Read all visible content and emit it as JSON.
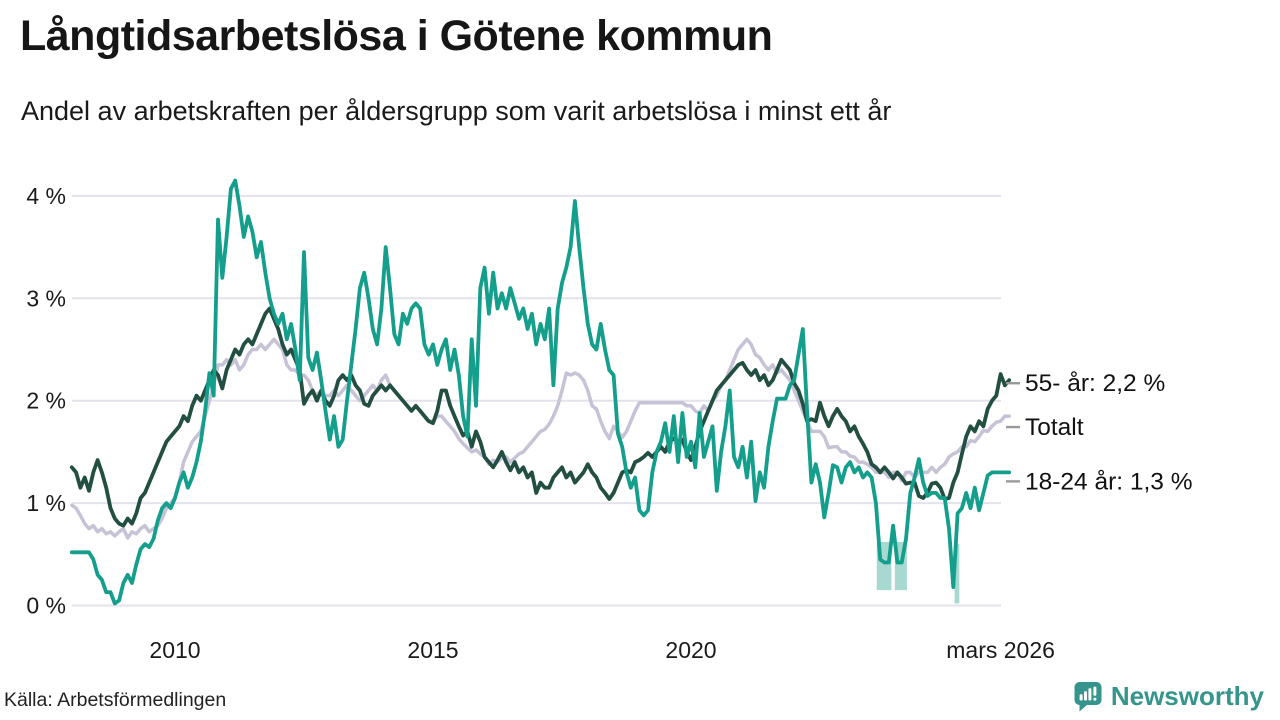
{
  "header": {
    "title": "Långtidsarbetslösa i Götene kommun",
    "subtitle": "Andel av arbetskraften per åldersgrupp som varit arbetslösa i minst ett år"
  },
  "footer": {
    "source": "Källa: Arbetsförmedlingen",
    "brand": "Newsworthy",
    "brand_color": "#35948b"
  },
  "chart_data": {
    "type": "line",
    "title": "Långtidsarbetslösa i Götene kommun",
    "x_start": "2008-01",
    "x_end": "2026-03",
    "x_unit": "month",
    "ylim": [
      0,
      4.3
    ],
    "grid": true,
    "grid_color": "#e4e2ec",
    "text_color": "#1a1a1a",
    "tick_dash_color": "#999999",
    "y_ticks": [
      {
        "label": "0 %",
        "value": 0
      },
      {
        "label": "1 %",
        "value": 1
      },
      {
        "label": "2 %",
        "value": 2
      },
      {
        "label": "3 %",
        "value": 3
      },
      {
        "label": "4 %",
        "value": 4
      }
    ],
    "x_ticks": [
      {
        "label": "2010",
        "month_index": 24
      },
      {
        "label": "2015",
        "month_index": 84
      },
      {
        "label": "2020",
        "month_index": 144
      },
      {
        "label": "mars 2026",
        "month_index": 216
      }
    ],
    "series": [
      {
        "name": "Totalt",
        "label": "Totalt",
        "color": "#c6c3d6",
        "width": 3.5,
        "label_dy": 19,
        "values": [
          0.98,
          0.95,
          0.88,
          0.8,
          0.75,
          0.78,
          0.72,
          0.75,
          0.7,
          0.72,
          0.68,
          0.72,
          0.75,
          0.66,
          0.72,
          0.7,
          0.75,
          0.78,
          0.72,
          0.75,
          0.78,
          0.85,
          0.95,
          1.0,
          1.05,
          1.2,
          1.4,
          1.5,
          1.6,
          1.65,
          1.7,
          1.85,
          2.0,
          2.15,
          2.35,
          2.35,
          2.4,
          2.35,
          2.4,
          2.3,
          2.35,
          2.45,
          2.5,
          2.5,
          2.55,
          2.5,
          2.55,
          2.6,
          2.55,
          2.5,
          2.35,
          2.3,
          2.3,
          2.25,
          2.25,
          2.2,
          2.1,
          2.05,
          2.1,
          2.05,
          2.05,
          2.1,
          2.05,
          2.1,
          2.15,
          2.1,
          2.05,
          2.0,
          2.05,
          2.1,
          2.15,
          2.1,
          2.2,
          2.25,
          2.15,
          2.1,
          2.05,
          2.0,
          1.95,
          1.9,
          1.95,
          1.9,
          1.85,
          1.8,
          1.8,
          1.85,
          1.85,
          1.8,
          1.75,
          1.7,
          1.63,
          1.58,
          1.54,
          1.5,
          1.52,
          1.48,
          1.45,
          1.38,
          1.42,
          1.4,
          1.44,
          1.45,
          1.4,
          1.44,
          1.48,
          1.5,
          1.55,
          1.6,
          1.65,
          1.7,
          1.72,
          1.77,
          1.85,
          1.95,
          2.1,
          2.27,
          2.25,
          2.27,
          2.25,
          2.2,
          2.1,
          1.95,
          1.92,
          1.8,
          1.7,
          1.63,
          1.75,
          1.7,
          1.64,
          1.7,
          1.8,
          1.9,
          1.98,
          1.98,
          1.98,
          1.98,
          1.98,
          1.98,
          1.98,
          1.98,
          1.98,
          1.98,
          1.98,
          1.95,
          1.95,
          1.9,
          1.88,
          1.95,
          1.9,
          2.0,
          2.05,
          2.15,
          2.2,
          2.3,
          2.4,
          2.5,
          2.55,
          2.6,
          2.55,
          2.45,
          2.42,
          2.35,
          2.3,
          2.35,
          2.27,
          2.3,
          2.25,
          2.2,
          2.1,
          2.0,
          1.9,
          1.8,
          1.7,
          1.7,
          1.7,
          1.65,
          1.54,
          1.55,
          1.55,
          1.5,
          1.5,
          1.46,
          1.45,
          1.4,
          1.4,
          1.38,
          1.35,
          1.3,
          1.3,
          1.3,
          1.25,
          1.3,
          1.3,
          1.22,
          1.3,
          1.3,
          1.25,
          1.3,
          1.3,
          1.3,
          1.35,
          1.3,
          1.35,
          1.38,
          1.45,
          1.48,
          1.5,
          1.55,
          1.55,
          1.61,
          1.6,
          1.65,
          1.71,
          1.7,
          1.75,
          1.79,
          1.8,
          1.85,
          1.85
        ]
      },
      {
        "name": "55- år",
        "label": "55- år: 2,2 %",
        "color": "#234f43",
        "width": 3.8,
        "label_dy": 11,
        "values": [
          1.35,
          1.3,
          1.15,
          1.25,
          1.12,
          1.3,
          1.42,
          1.3,
          1.15,
          0.95,
          0.85,
          0.8,
          0.78,
          0.85,
          0.8,
          0.9,
          1.05,
          1.1,
          1.2,
          1.3,
          1.4,
          1.5,
          1.6,
          1.65,
          1.7,
          1.75,
          1.85,
          1.8,
          1.95,
          2.05,
          2.0,
          2.1,
          2.2,
          2.3,
          2.25,
          2.12,
          2.3,
          2.4,
          2.5,
          2.45,
          2.55,
          2.6,
          2.55,
          2.65,
          2.75,
          2.85,
          2.9,
          2.8,
          2.7,
          2.55,
          2.45,
          2.5,
          2.4,
          2.3,
          1.97,
          2.05,
          2.1,
          2.0,
          2.1,
          2.0,
          1.95,
          2.05,
          2.2,
          2.25,
          2.2,
          2.25,
          2.15,
          2.1,
          1.97,
          1.95,
          2.05,
          2.1,
          2.15,
          2.1,
          2.15,
          2.1,
          2.05,
          2.0,
          1.95,
          1.9,
          1.95,
          1.9,
          1.85,
          1.8,
          1.78,
          1.9,
          2.1,
          2.1,
          1.95,
          1.85,
          1.75,
          1.66,
          1.7,
          1.55,
          1.7,
          1.6,
          1.45,
          1.4,
          1.35,
          1.42,
          1.5,
          1.4,
          1.32,
          1.4,
          1.3,
          1.35,
          1.25,
          1.3,
          1.1,
          1.2,
          1.15,
          1.15,
          1.25,
          1.3,
          1.35,
          1.25,
          1.3,
          1.2,
          1.25,
          1.3,
          1.38,
          1.3,
          1.25,
          1.15,
          1.1,
          1.04,
          1.1,
          1.2,
          1.3,
          1.32,
          1.3,
          1.4,
          1.42,
          1.45,
          1.49,
          1.45,
          1.5,
          1.55,
          1.5,
          1.6,
          1.63,
          1.6,
          1.62,
          1.5,
          1.42,
          1.55,
          1.7,
          1.8,
          1.9,
          2.0,
          2.1,
          2.15,
          2.2,
          2.25,
          2.3,
          2.35,
          2.37,
          2.3,
          2.25,
          2.3,
          2.2,
          2.25,
          2.15,
          2.2,
          2.3,
          2.4,
          2.35,
          2.3,
          2.17,
          2.1,
          1.97,
          1.8,
          1.82,
          1.8,
          1.98,
          1.85,
          1.75,
          1.85,
          1.92,
          1.85,
          1.8,
          1.7,
          1.75,
          1.65,
          1.58,
          1.5,
          1.38,
          1.35,
          1.3,
          1.35,
          1.3,
          1.24,
          1.3,
          1.25,
          1.19,
          1.2,
          1.2,
          1.07,
          1.05,
          1.1,
          1.19,
          1.2,
          1.15,
          1.04,
          1.05,
          1.2,
          1.3,
          1.48,
          1.65,
          1.75,
          1.7,
          1.8,
          1.75,
          1.92,
          2.0,
          2.05,
          2.26,
          2.15,
          2.2
        ]
      },
      {
        "name": "18-24 år",
        "label": "18-24 år: 1,3 %",
        "color": "#149e8c",
        "width": 3.8,
        "label_dy": 17,
        "values": [
          0.52,
          0.52,
          0.52,
          0.52,
          0.52,
          0.45,
          0.3,
          0.25,
          0.13,
          0.13,
          0.02,
          0.05,
          0.22,
          0.3,
          0.22,
          0.4,
          0.55,
          0.6,
          0.57,
          0.65,
          0.83,
          0.95,
          1.0,
          0.95,
          1.05,
          1.2,
          1.3,
          1.15,
          1.25,
          1.4,
          1.6,
          1.9,
          2.27,
          2.05,
          3.77,
          3.2,
          3.6,
          4.07,
          4.15,
          3.9,
          3.6,
          3.8,
          3.65,
          3.4,
          3.55,
          3.25,
          3.0,
          2.85,
          2.75,
          2.85,
          2.6,
          2.75,
          2.5,
          2.2,
          3.45,
          2.42,
          2.3,
          2.47,
          2.2,
          1.9,
          1.62,
          1.85,
          1.55,
          1.62,
          2.0,
          2.35,
          2.7,
          3.1,
          3.25,
          3.0,
          2.7,
          2.55,
          2.9,
          3.5,
          3.1,
          2.65,
          2.55,
          2.85,
          2.75,
          2.9,
          2.95,
          2.9,
          2.55,
          2.45,
          2.55,
          2.35,
          2.5,
          2.6,
          2.3,
          2.5,
          2.25,
          1.85,
          1.65,
          2.6,
          1.95,
          3.1,
          3.3,
          2.85,
          3.25,
          2.9,
          3.05,
          2.9,
          3.1,
          2.95,
          2.8,
          2.9,
          2.7,
          2.85,
          2.55,
          2.75,
          2.6,
          2.9,
          2.15,
          2.9,
          3.15,
          3.3,
          3.5,
          3.95,
          3.5,
          3.1,
          2.75,
          2.55,
          2.5,
          2.75,
          2.5,
          2.3,
          2.25,
          1.68,
          1.55,
          1.3,
          1.15,
          1.25,
          0.93,
          0.88,
          0.93,
          1.3,
          1.5,
          1.6,
          1.78,
          1.5,
          1.85,
          1.4,
          1.88,
          1.45,
          1.6,
          1.35,
          1.88,
          1.45,
          1.6,
          1.75,
          1.12,
          1.5,
          1.75,
          2.1,
          1.45,
          1.35,
          1.55,
          1.25,
          1.6,
          1.02,
          1.3,
          1.15,
          1.55,
          1.8,
          2.02,
          2.02,
          2.02,
          2.15,
          2.2,
          2.45,
          2.7,
          1.9,
          1.2,
          1.38,
          1.2,
          0.86,
          1.1,
          1.37,
          1.35,
          1.2,
          1.35,
          1.4,
          1.3,
          1.35,
          1.25,
          1.3,
          1.25,
          1.0,
          0.45,
          0.42,
          0.42,
          0.78,
          0.42,
          0.42,
          0.65,
          1.1,
          1.25,
          1.43,
          1.2,
          1.07,
          1.1,
          1.1,
          1.05,
          1.05,
          0.75,
          0.18,
          0.9,
          0.95,
          1.1,
          0.95,
          1.15,
          0.93,
          1.1,
          1.27,
          1.3,
          1.3,
          1.3,
          1.3,
          1.3
        ]
      }
    ],
    "uncertainty_color": "#a7d9d0",
    "uncertainty_bands": [
      {
        "start_month": 187.2,
        "end_month": 190.6,
        "top": 0.62,
        "bottom": 0.15
      },
      {
        "start_month": 191.4,
        "end_month": 194.2,
        "top": 0.62,
        "bottom": 0.15
      },
      {
        "start_month": 205.3,
        "end_month": 206.4,
        "top": 0.6,
        "bottom": 0.02
      }
    ],
    "legend_position": "right-of-line-ends"
  }
}
